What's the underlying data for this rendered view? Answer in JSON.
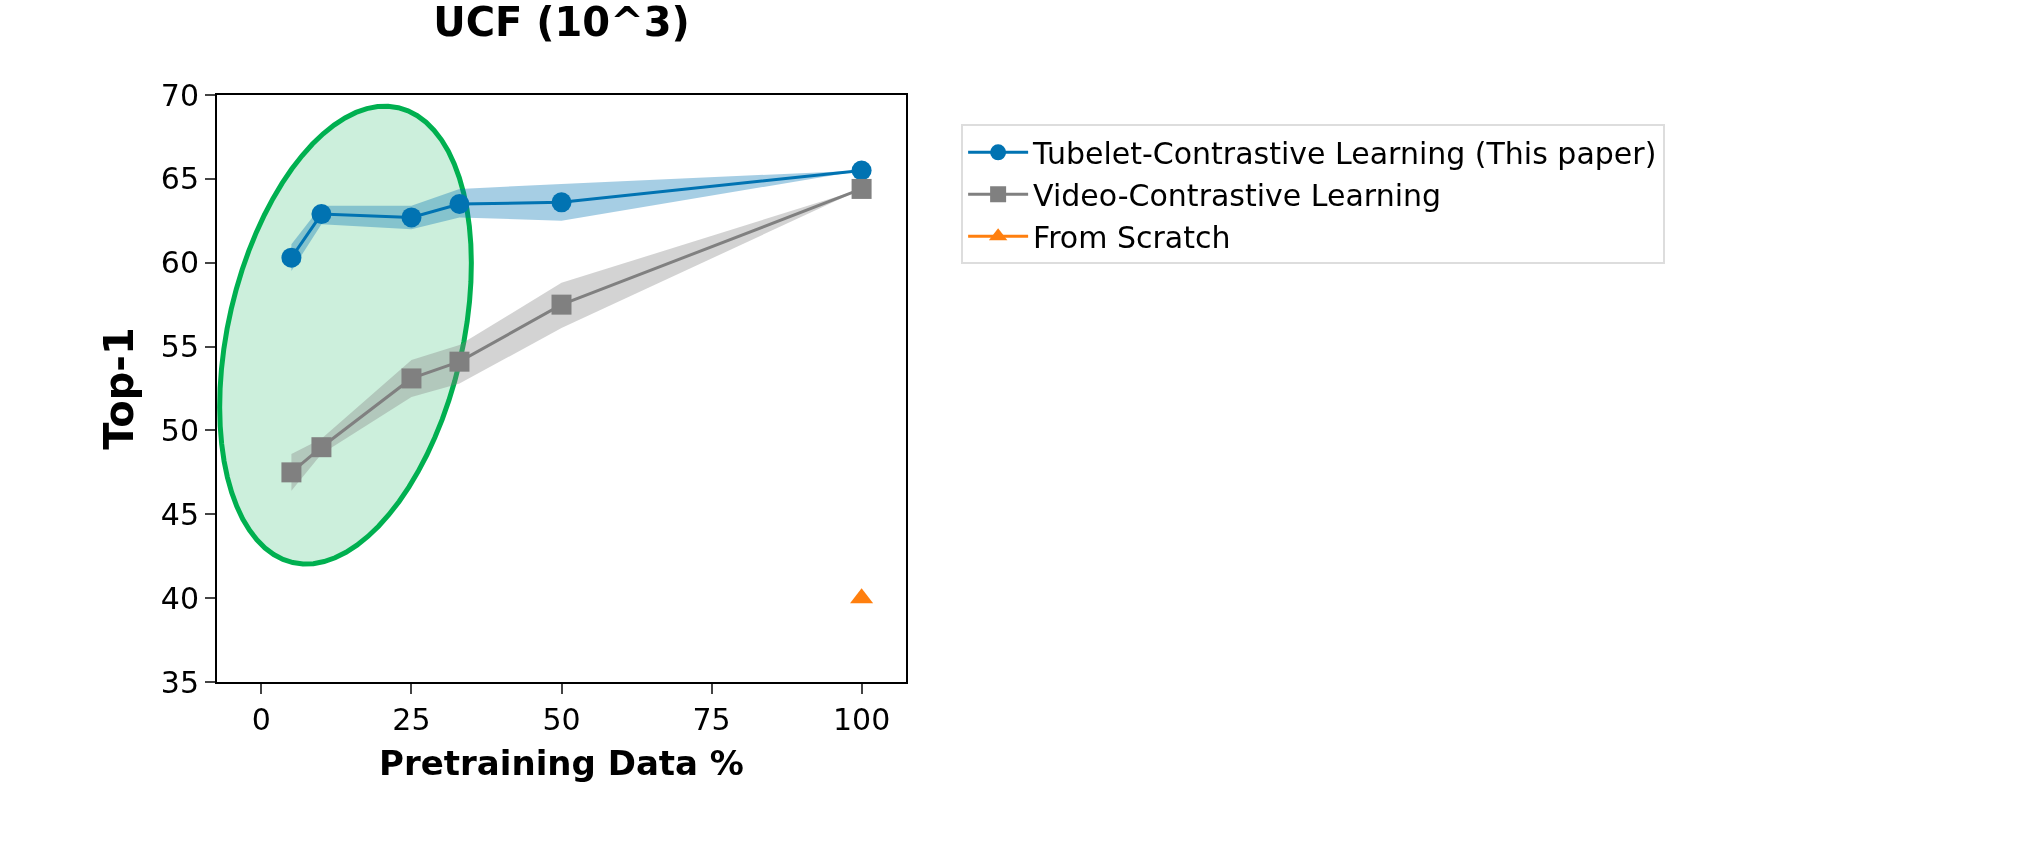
{
  "chart_data": {
    "type": "line",
    "title": "UCF (10^3)",
    "xlabel": "Pretraining Data %",
    "ylabel": "Top-1",
    "xlim": [
      -7.4,
      107.4
    ],
    "ylim": [
      35,
      70
    ],
    "xticks": [
      0,
      25,
      50,
      75,
      100
    ],
    "yticks": [
      35,
      40,
      45,
      50,
      55,
      60,
      65,
      70
    ],
    "grid": false,
    "legend": "right",
    "line_style": "solid",
    "series": [
      {
        "name": "Tubelet-Contrastive Learning (This paper)",
        "color": "#0173b2",
        "marker": "circle",
        "x": [
          5,
          10,
          25,
          33,
          50,
          100
        ],
        "values": [
          60.3,
          62.9,
          62.7,
          63.5,
          63.6,
          65.5
        ],
        "lower": [
          59.5,
          62.3,
          62.0,
          62.7,
          62.5,
          65.5
        ],
        "upper": [
          61.1,
          63.4,
          63.4,
          64.4,
          64.7,
          65.5
        ]
      },
      {
        "name": "Video-Contrastive Learning",
        "color": "#808080",
        "marker": "square",
        "x": [
          5,
          10,
          25,
          33,
          50,
          100
        ],
        "values": [
          47.5,
          49.0,
          53.1,
          54.1,
          57.5,
          64.4
        ],
        "lower": [
          46.4,
          48.6,
          52.0,
          52.8,
          56.1,
          64.4
        ],
        "upper": [
          48.6,
          49.5,
          54.2,
          55.1,
          58.8,
          64.4
        ]
      },
      {
        "name": "From Scratch",
        "color": "#ff7f0e",
        "marker": "triangle",
        "x": [
          100
        ],
        "values": [
          40
        ]
      }
    ]
  }
}
